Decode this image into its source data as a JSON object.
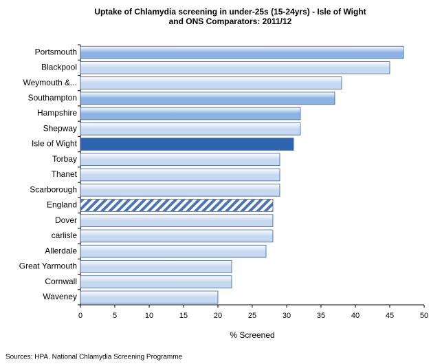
{
  "chart_data": {
    "type": "barh",
    "title": [
      "Uptake of Chlamydia screening in under-25s (15-24yrs) - Isle of Wight",
      "and ONS Comparators: 2011/12"
    ],
    "categories": [
      "Portsmouth",
      "Blackpool",
      "Weymouth &...",
      "Southampton",
      "Hampshire",
      "Shepway",
      "Isle of Wight",
      "Torbay",
      "Thanet",
      "Scarborough",
      "England",
      "Dover",
      "carlisle",
      "Allerdale",
      "Great Yarmouth",
      "Cornwall",
      "Waveney"
    ],
    "values": [
      47,
      45,
      38,
      37,
      32,
      32,
      31,
      29,
      29,
      29,
      28,
      28,
      28,
      27,
      22,
      22,
      20
    ],
    "colors": [
      "#8db3e2",
      "#c6d9f1",
      "#c6d9f1",
      "#8db3e2",
      "#8db3e2",
      "#c6d9f1",
      "#2e64b0",
      "#c6d9f1",
      "#c6d9f1",
      "#c6d9f1",
      "#4a74b8",
      "#c6d9f1",
      "#c6d9f1",
      "#c6d9f1",
      "#c6d9f1",
      "#c6d9f1",
      "#c6d9f1"
    ],
    "hatched": [
      false,
      false,
      false,
      false,
      false,
      false,
      false,
      false,
      false,
      false,
      true,
      false,
      false,
      false,
      false,
      false,
      false
    ],
    "xlim": [
      0,
      50
    ],
    "xticks": [
      0,
      5,
      10,
      15,
      20,
      25,
      30,
      35,
      40,
      45,
      50
    ],
    "xlabel": "% Screened",
    "source": "Sources: HPA.  National Chlamydia Screening Programme"
  }
}
